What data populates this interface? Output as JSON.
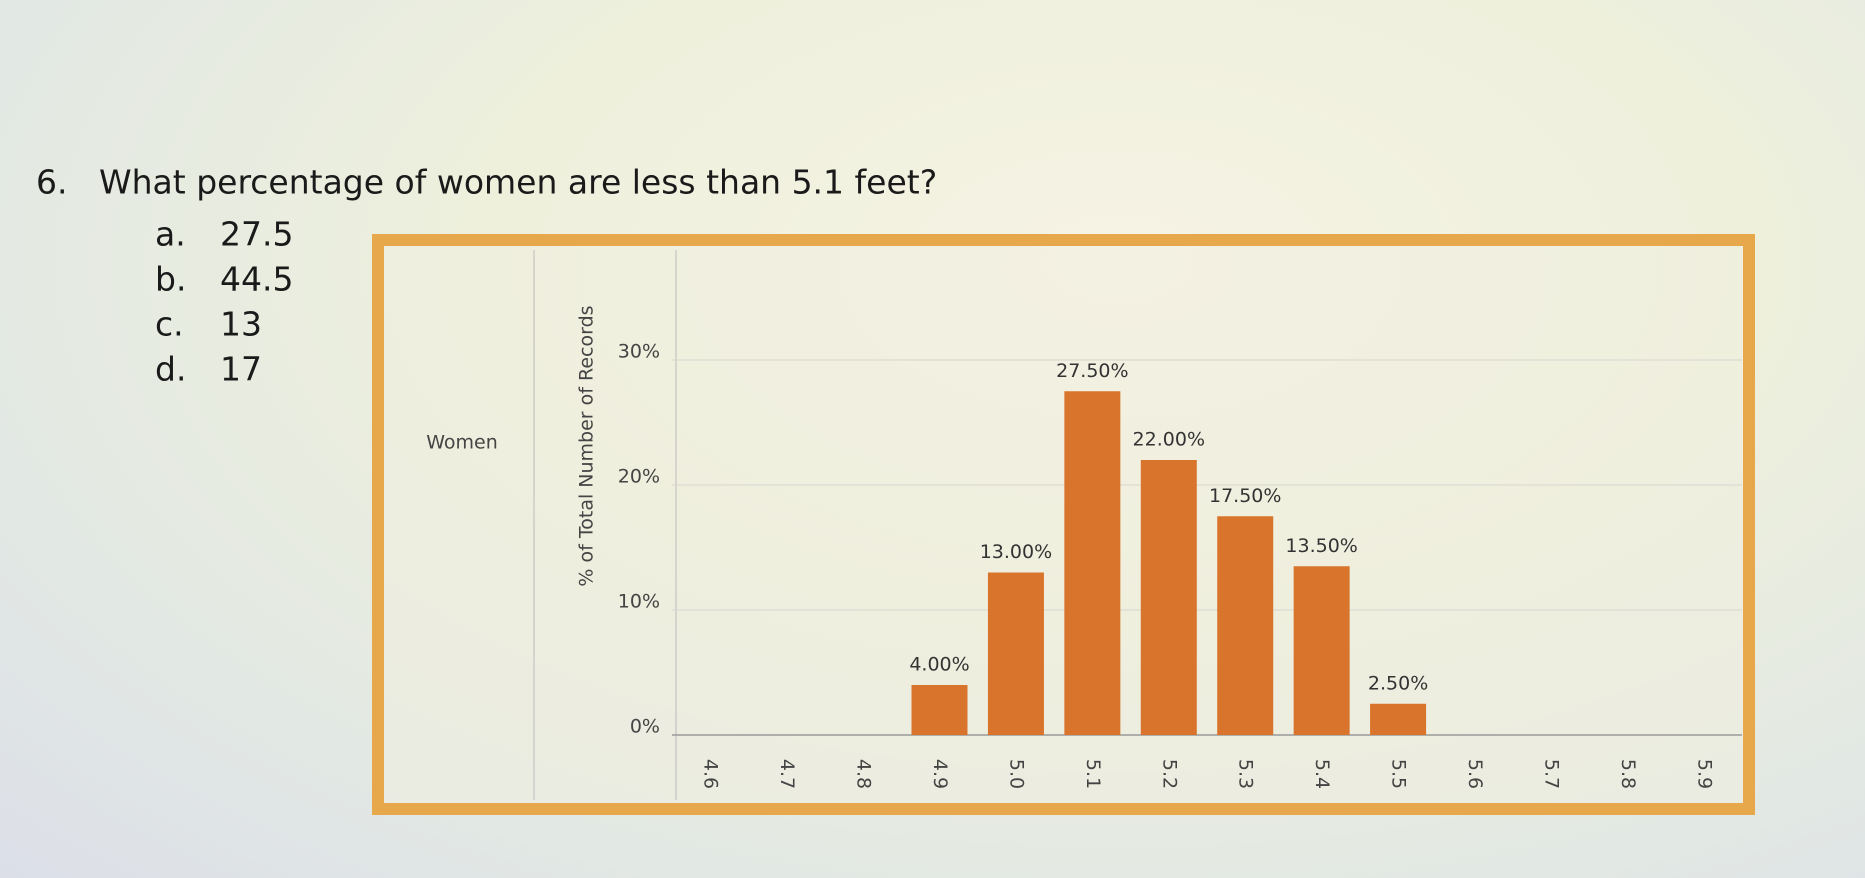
{
  "question": {
    "number": "6.",
    "text": "What percentage of women are less than 5.1 feet?",
    "options": [
      {
        "letter": "a.",
        "text": "27.5"
      },
      {
        "letter": "b.",
        "text": "44.5"
      },
      {
        "letter": "c.",
        "text": "13"
      },
      {
        "letter": "d.",
        "text": "17"
      }
    ]
  },
  "chart_data": {
    "type": "bar",
    "row_label": "Women",
    "y_label": "% of Total Number of Records",
    "categories": [
      "4.6",
      "4.7",
      "4.8",
      "4.9",
      "5.0",
      "5.1",
      "5.2",
      "5.3",
      "5.4",
      "5.5",
      "5.6",
      "5.7",
      "5.8",
      "5.9"
    ],
    "values": [
      null,
      null,
      null,
      4,
      13,
      27.5,
      22,
      17.5,
      13.5,
      2.5,
      null,
      null,
      null,
      null
    ],
    "value_labels": [
      null,
      null,
      null,
      "4.00%",
      "13.00%",
      "27.50%",
      "22.00%",
      "17.50%",
      "13.50%",
      "2.50%",
      null,
      null,
      null,
      null
    ],
    "color": "#d8742c",
    "ylim": [
      0,
      38
    ],
    "yticks": [
      {
        "value": 0,
        "label": "0%"
      },
      {
        "value": 10,
        "label": "10%"
      },
      {
        "value": 20,
        "label": "20%"
      },
      {
        "value": 30,
        "label": "30%"
      }
    ],
    "grid": true
  }
}
